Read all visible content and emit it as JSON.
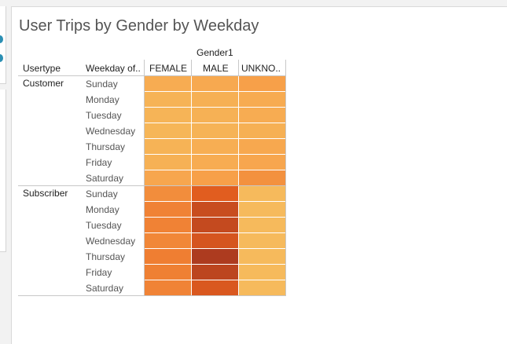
{
  "title": "User Trips by Gender by Weekday",
  "chart_data": {
    "type": "heatmap",
    "title": "User Trips by Gender by Weekday",
    "column_group_label": "Gender1",
    "row_header_1": "Usertype",
    "row_header_2": "Weekday of..",
    "columns": [
      "FEMALE",
      "MALE",
      "UNKNO.."
    ],
    "groups": [
      {
        "name": "Customer",
        "rows": [
          "Sunday",
          "Monday",
          "Tuesday",
          "Wednesday",
          "Thursday",
          "Friday",
          "Saturday"
        ],
        "values": [
          [
            0.26,
            0.28,
            0.34
          ],
          [
            0.22,
            0.24,
            0.27
          ],
          [
            0.21,
            0.23,
            0.26
          ],
          [
            0.2,
            0.22,
            0.24
          ],
          [
            0.22,
            0.25,
            0.29
          ],
          [
            0.23,
            0.26,
            0.3
          ],
          [
            0.3,
            0.34,
            0.42
          ]
        ]
      },
      {
        "name": "Subscriber",
        "rows": [
          "Sunday",
          "Monday",
          "Tuesday",
          "Wednesday",
          "Thursday",
          "Friday",
          "Saturday"
        ],
        "values": [
          [
            0.44,
            0.7,
            0.17
          ],
          [
            0.5,
            0.82,
            0.17
          ],
          [
            0.5,
            0.84,
            0.17
          ],
          [
            0.47,
            0.76,
            0.17
          ],
          [
            0.52,
            0.95,
            0.17
          ],
          [
            0.51,
            0.88,
            0.17
          ],
          [
            0.49,
            0.74,
            0.17
          ]
        ]
      }
    ],
    "color_scale": [
      "#f5d56e",
      "#f7a14a",
      "#e8621f",
      "#a3341f"
    ]
  }
}
